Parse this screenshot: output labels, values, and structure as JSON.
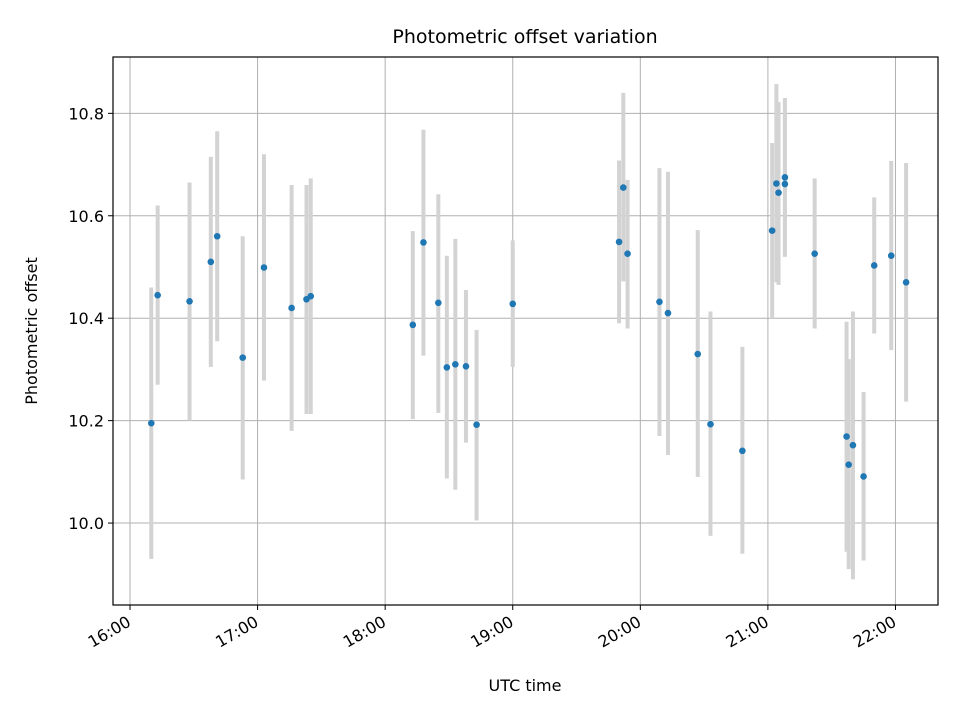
{
  "chart_data": {
    "type": "scatter",
    "title": "Photometric offset variation",
    "xlabel": "UTC time",
    "ylabel": "Photometric offset",
    "x_ticks": [
      "16:00",
      "17:00",
      "18:00",
      "19:00",
      "20:00",
      "21:00",
      "22:00"
    ],
    "y_ticks": [
      "10.0",
      "10.2",
      "10.4",
      "10.6",
      "10.8"
    ],
    "xlim": [
      "15:52",
      "22:20"
    ],
    "ylim": [
      9.84,
      10.91
    ],
    "grid": true,
    "marker_color": "#1f77b4",
    "errorbar_color": "#d3d3d3",
    "points": [
      {
        "t": "16:10",
        "y": 10.195,
        "lo": 9.93,
        "hi": 10.46
      },
      {
        "t": "16:13",
        "y": 10.445,
        "lo": 10.27,
        "hi": 10.62
      },
      {
        "t": "16:28",
        "y": 10.433,
        "lo": 10.2,
        "hi": 10.665
      },
      {
        "t": "16:38",
        "y": 10.51,
        "lo": 10.305,
        "hi": 10.715
      },
      {
        "t": "16:41",
        "y": 10.56,
        "lo": 10.355,
        "hi": 10.765
      },
      {
        "t": "16:53",
        "y": 10.323,
        "lo": 10.085,
        "hi": 10.56
      },
      {
        "t": "17:03",
        "y": 10.499,
        "lo": 10.278,
        "hi": 10.72
      },
      {
        "t": "17:16",
        "y": 10.42,
        "lo": 10.18,
        "hi": 10.66
      },
      {
        "t": "17:23",
        "y": 10.437,
        "lo": 10.213,
        "hi": 10.66
      },
      {
        "t": "17:25",
        "y": 10.443,
        "lo": 10.213,
        "hi": 10.673
      },
      {
        "t": "18:13",
        "y": 10.387,
        "lo": 10.203,
        "hi": 10.57
      },
      {
        "t": "18:18",
        "y": 10.548,
        "lo": 10.327,
        "hi": 10.768
      },
      {
        "t": "18:25",
        "y": 10.43,
        "lo": 10.215,
        "hi": 10.642
      },
      {
        "t": "18:29",
        "y": 10.304,
        "lo": 10.087,
        "hi": 10.522
      },
      {
        "t": "18:33",
        "y": 10.31,
        "lo": 10.065,
        "hi": 10.555
      },
      {
        "t": "18:38",
        "y": 10.306,
        "lo": 10.157,
        "hi": 10.455
      },
      {
        "t": "18:43",
        "y": 10.192,
        "lo": 10.005,
        "hi": 10.377
      },
      {
        "t": "19:00",
        "y": 10.428,
        "lo": 10.305,
        "hi": 10.552
      },
      {
        "t": "19:50",
        "y": 10.549,
        "lo": 10.39,
        "hi": 10.708
      },
      {
        "t": "19:52",
        "y": 10.655,
        "lo": 10.472,
        "hi": 10.84
      },
      {
        "t": "19:54",
        "y": 10.526,
        "lo": 10.38,
        "hi": 10.67
      },
      {
        "t": "20:09",
        "y": 10.432,
        "lo": 10.17,
        "hi": 10.693
      },
      {
        "t": "20:13",
        "y": 10.41,
        "lo": 10.133,
        "hi": 10.686
      },
      {
        "t": "20:27",
        "y": 10.33,
        "lo": 10.09,
        "hi": 10.572
      },
      {
        "t": "20:33",
        "y": 10.193,
        "lo": 9.975,
        "hi": 10.413
      },
      {
        "t": "20:48",
        "y": 10.141,
        "lo": 9.94,
        "hi": 10.344
      },
      {
        "t": "21:02",
        "y": 10.571,
        "lo": 10.4,
        "hi": 10.742
      },
      {
        "t": "21:04",
        "y": 10.663,
        "lo": 10.47,
        "hi": 10.857
      },
      {
        "t": "21:05",
        "y": 10.645,
        "lo": 10.465,
        "hi": 10.822
      },
      {
        "t": "21:08",
        "y": 10.675,
        "lo": 10.52,
        "hi": 10.83
      },
      {
        "t": "21:08",
        "y": 10.662,
        "lo": 10.52,
        "hi": 10.8
      },
      {
        "t": "21:22",
        "y": 10.526,
        "lo": 10.38,
        "hi": 10.673
      },
      {
        "t": "21:37",
        "y": 10.169,
        "lo": 9.944,
        "hi": 10.393
      },
      {
        "t": "21:38",
        "y": 10.114,
        "lo": 9.91,
        "hi": 10.32
      },
      {
        "t": "21:40",
        "y": 10.152,
        "lo": 9.89,
        "hi": 10.413
      },
      {
        "t": "21:45",
        "y": 10.091,
        "lo": 9.927,
        "hi": 10.256
      },
      {
        "t": "21:50",
        "y": 10.503,
        "lo": 10.37,
        "hi": 10.636
      },
      {
        "t": "21:58",
        "y": 10.522,
        "lo": 10.338,
        "hi": 10.707
      },
      {
        "t": "22:05",
        "y": 10.47,
        "lo": 10.237,
        "hi": 10.703
      }
    ]
  }
}
